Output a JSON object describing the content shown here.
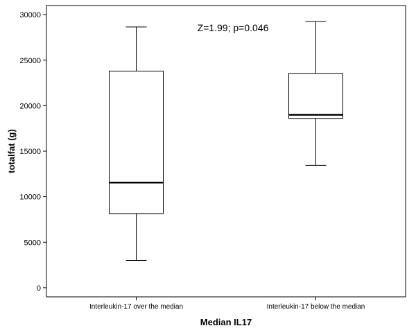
{
  "chart_data": {
    "type": "boxplot",
    "title": "",
    "xlabel": "Median IL17",
    "ylabel": "totalfat (g)",
    "ylim": [
      -1000,
      31000
    ],
    "yticks": [
      0,
      5000,
      10000,
      15000,
      20000,
      25000,
      30000
    ],
    "grid": false,
    "annotation": "Z=1.99; p=0.046",
    "categories": [
      "Interleukin-17 over the median",
      "Interleukin-17 below  the median"
    ],
    "boxes": [
      {
        "min": 3000,
        "q1": 8150,
        "median": 11550,
        "q3": 23800,
        "max": 28650
      },
      {
        "min": 13450,
        "q1": 18600,
        "median": 19000,
        "q3": 23550,
        "max": 29250
      }
    ]
  }
}
